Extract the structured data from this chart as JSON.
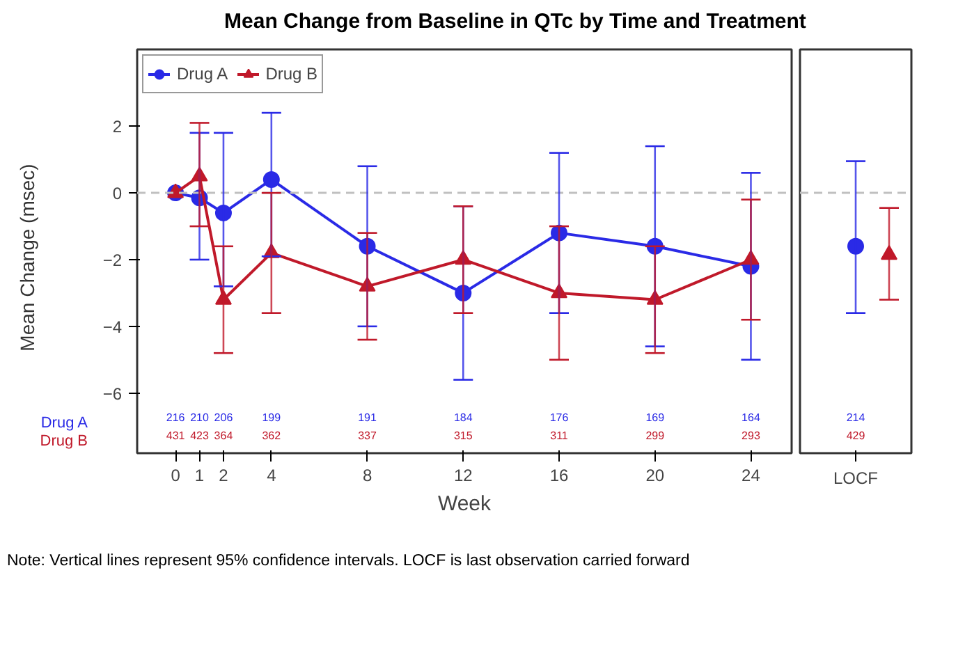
{
  "chart_data": [
    {
      "type": "line",
      "title": "Mean Change from Baseline in QTc by Time and Treatment",
      "xlabel": "Week",
      "ylabel": "Mean Change (msec)",
      "x": [
        0,
        1,
        2,
        4,
        8,
        12,
        16,
        20,
        24
      ],
      "xlim": [
        -1.6,
        25.7
      ],
      "xticks": [
        0,
        1,
        2,
        4,
        8,
        12,
        16,
        20,
        24
      ],
      "ylim": [
        -7.8,
        4.3
      ],
      "yticks": [
        -6,
        -4,
        -2,
        0,
        2
      ],
      "grid": false,
      "legend": "top left",
      "line_style": "solid",
      "ref_lines": [
        {
          "axis": "y",
          "value": 0,
          "color": "#c0c0c0",
          "line_style": "dashed"
        }
      ],
      "series": [
        {
          "name": "Drug A",
          "color": "#2a2ae6",
          "marker": "circle",
          "values": [
            0,
            -0.15,
            -0.6,
            0.4,
            -1.6,
            -3.0,
            -1.2,
            -1.6,
            -2.2
          ],
          "errors": [
            null,
            [
              -2.0,
              1.8
            ],
            [
              -2.8,
              1.8
            ],
            [
              -1.9,
              2.4
            ],
            [
              -4.0,
              0.8
            ],
            [
              -5.6,
              -0.4
            ],
            [
              -3.6,
              1.2
            ],
            [
              -4.6,
              1.4
            ],
            [
              -5.0,
              0.6
            ]
          ]
        },
        {
          "name": "Drug B",
          "color": "#c0192a",
          "marker": "triangle",
          "values": [
            0,
            0.5,
            -3.2,
            -1.8,
            -2.8,
            -2.0,
            -3.0,
            -3.2,
            -2.0
          ],
          "errors": [
            null,
            [
              -1.0,
              2.1
            ],
            [
              -4.8,
              -1.6
            ],
            [
              -3.6,
              0.0
            ],
            [
              -4.4,
              -1.2
            ],
            [
              -3.6,
              -0.4
            ],
            [
              -5.0,
              -1.0
            ],
            [
              -4.8,
              -1.6
            ],
            [
              -3.8,
              -0.2
            ]
          ]
        }
      ],
      "annotations": [
        "Drug A",
        "Drug B",
        "216",
        "210",
        "206",
        "199",
        "191",
        "184",
        "176",
        "169",
        "164",
        "431",
        "423",
        "364",
        "362",
        "337",
        "315",
        "311",
        "299",
        "293",
        "Note: Vertical lines represent 95% confidence intervals.  LOCF is last observation carried forward"
      ]
    },
    {
      "type": "scatter",
      "categories": [
        "LOCF"
      ],
      "ylim": [
        -7.8,
        4.3
      ],
      "tick_labels": "x",
      "grid": false,
      "ref_lines": [
        {
          "axis": "y",
          "value": 0,
          "color": "#c0c0c0",
          "line_style": "dashed"
        }
      ],
      "series": [
        {
          "color": "#2a2ae6",
          "marker": "circle",
          "values": [
            -1.6
          ],
          "errors": [
            [
              -3.6,
              0.95
            ]
          ]
        },
        {
          "color": "#c0192a",
          "marker": "triangle",
          "values": [
            -1.85
          ],
          "errors": [
            [
              -3.2,
              -0.45
            ]
          ]
        }
      ],
      "annotations": [
        "214",
        "429"
      ]
    }
  ]
}
